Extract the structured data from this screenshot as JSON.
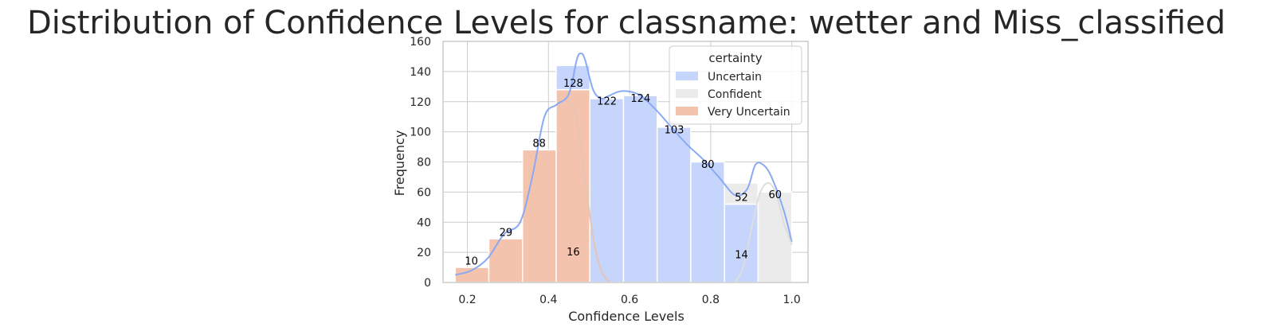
{
  "chart_data": {
    "type": "bar",
    "title": "Distribution of Confidence Levels for classname: wetter and Miss_classified",
    "xlabel": "Confidence Levels",
    "ylabel": "Frequency",
    "xlim": [
      0.14,
      1.04
    ],
    "ylim": [
      0,
      160
    ],
    "xticks": [
      "0.2",
      "0.4",
      "0.6",
      "0.8",
      "1.0"
    ],
    "xtick_values": [
      0.2,
      0.4,
      0.6,
      0.8,
      1.0
    ],
    "yticks": [
      "0",
      "20",
      "40",
      "60",
      "80",
      "100",
      "120",
      "140",
      "160"
    ],
    "ytick_values": [
      0,
      20,
      40,
      60,
      80,
      100,
      120,
      140,
      160
    ],
    "grid": true,
    "stacked": true,
    "bin_edges": [
      0.17,
      0.253,
      0.336,
      0.419,
      0.502,
      0.585,
      0.668,
      0.751,
      0.834,
      0.917,
      1.0
    ],
    "series": [
      {
        "name": "Very Uncertain",
        "color": "#f4c3ae",
        "values": [
          10,
          29,
          88,
          128,
          0,
          0,
          0,
          0,
          0,
          0
        ]
      },
      {
        "name": "Uncertain",
        "color": "#c5d5fb",
        "values": [
          0,
          0,
          0,
          16,
          122,
          124,
          103,
          80,
          52,
          0
        ]
      },
      {
        "name": "Confident",
        "color": "#ebebeb",
        "values": [
          0,
          0,
          0,
          0,
          0,
          0,
          0,
          0,
          14,
          60
        ]
      }
    ],
    "data_labels": [
      {
        "text": "10",
        "x": 0.21,
        "y": 12
      },
      {
        "text": "29",
        "x": 0.295,
        "y": 31
      },
      {
        "text": "88",
        "x": 0.377,
        "y": 90
      },
      {
        "text": "128",
        "x": 0.461,
        "y": 130
      },
      {
        "text": "16",
        "x": 0.461,
        "y": 18
      },
      {
        "text": "122",
        "x": 0.544,
        "y": 118
      },
      {
        "text": "124",
        "x": 0.627,
        "y": 120
      },
      {
        "text": "103",
        "x": 0.71,
        "y": 99
      },
      {
        "text": "80",
        "x": 0.793,
        "y": 76
      },
      {
        "text": "52",
        "x": 0.876,
        "y": 54
      },
      {
        "text": "14",
        "x": 0.876,
        "y": 16
      },
      {
        "text": "60",
        "x": 0.959,
        "y": 56
      }
    ],
    "kde_curves": [
      {
        "series": "Uncertain",
        "color": "#8aa9f5",
        "points": [
          [
            0.17,
            5
          ],
          [
            0.21,
            8
          ],
          [
            0.25,
            16
          ],
          [
            0.29,
            32
          ],
          [
            0.33,
            40
          ],
          [
            0.36,
            70
          ],
          [
            0.39,
            110
          ],
          [
            0.42,
            118
          ],
          [
            0.45,
            125
          ],
          [
            0.47,
            148
          ],
          [
            0.48,
            152
          ],
          [
            0.49,
            148
          ],
          [
            0.51,
            128
          ],
          [
            0.53,
            122
          ],
          [
            0.55,
            124
          ],
          [
            0.58,
            127
          ],
          [
            0.62,
            125
          ],
          [
            0.66,
            116
          ],
          [
            0.7,
            104
          ],
          [
            0.74,
            92
          ],
          [
            0.78,
            82
          ],
          [
            0.82,
            70
          ],
          [
            0.86,
            58
          ],
          [
            0.89,
            62
          ],
          [
            0.91,
            78
          ],
          [
            0.93,
            78
          ],
          [
            0.95,
            70
          ],
          [
            0.98,
            48
          ],
          [
            1.0,
            27
          ]
        ]
      },
      {
        "series": "Very Uncertain",
        "color": "#e8c4b4",
        "points": [
          [
            0.43,
            118
          ],
          [
            0.45,
            120
          ],
          [
            0.47,
            108
          ],
          [
            0.49,
            70
          ],
          [
            0.51,
            30
          ],
          [
            0.53,
            8
          ],
          [
            0.55,
            0
          ]
        ]
      },
      {
        "series": "Confident",
        "color": "#dddddd",
        "points": [
          [
            0.86,
            0
          ],
          [
            0.88,
            10
          ],
          [
            0.9,
            35
          ],
          [
            0.92,
            58
          ],
          [
            0.94,
            66
          ],
          [
            0.96,
            60
          ],
          [
            0.98,
            40
          ],
          [
            1.0,
            25
          ]
        ]
      }
    ],
    "legend": {
      "title": "certainty",
      "position": "top-right",
      "entries": [
        {
          "label": "Uncertain",
          "color": "#c5d5fb"
        },
        {
          "label": "Confident",
          "color": "#ebebeb"
        },
        {
          "label": "Very Uncertain",
          "color": "#f4c3ae"
        }
      ]
    }
  }
}
